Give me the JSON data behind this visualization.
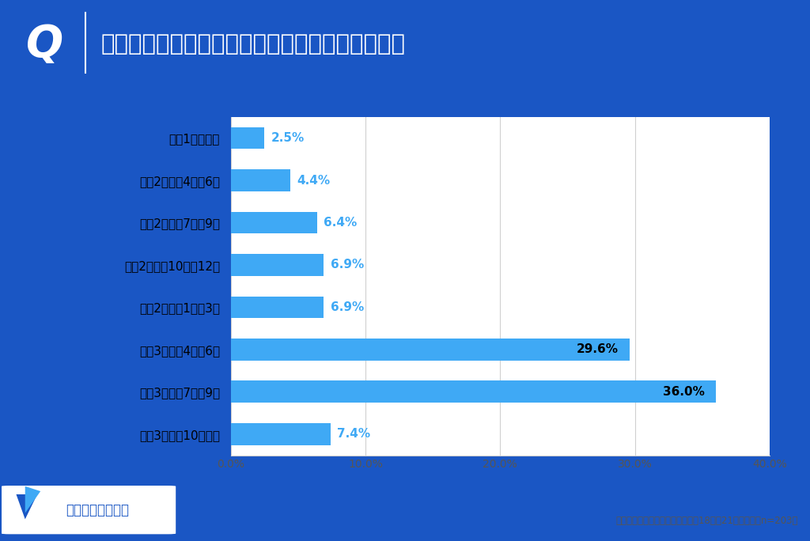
{
  "title_q": "Q",
  "title_text": "総合型選抜入試の準備はいつから始めましたか？",
  "categories": [
    "高校1年生以前",
    "高校2年生の4月～6月",
    "高校2年生の7月～9月",
    "高校2年生の10月～12月",
    "高校2年生の1月～3月",
    "高校3年生の4月～6月",
    "高校3年生の7月～9月",
    "高校3年生の10月以降"
  ],
  "values": [
    2.5,
    4.4,
    6.4,
    6.9,
    6.9,
    29.6,
    36.0,
    7.4
  ],
  "bar_color": "#3fa9f5",
  "header_bg": "#1a56c4",
  "chart_bg": "#ffffff",
  "outer_bg": "#1a56c4",
  "xlim": [
    0,
    40
  ],
  "xticks": [
    0,
    10,
    20,
    30,
    40
  ],
  "xtick_labels": [
    "0.0%",
    "10.0%",
    "20.0%",
    "30.0%",
    "40.0%"
  ],
  "footnote": "総合型選抜を受験したことがある18歳～21歳の男女（n=203）",
  "logo_text": "じゅけラボ予備校"
}
